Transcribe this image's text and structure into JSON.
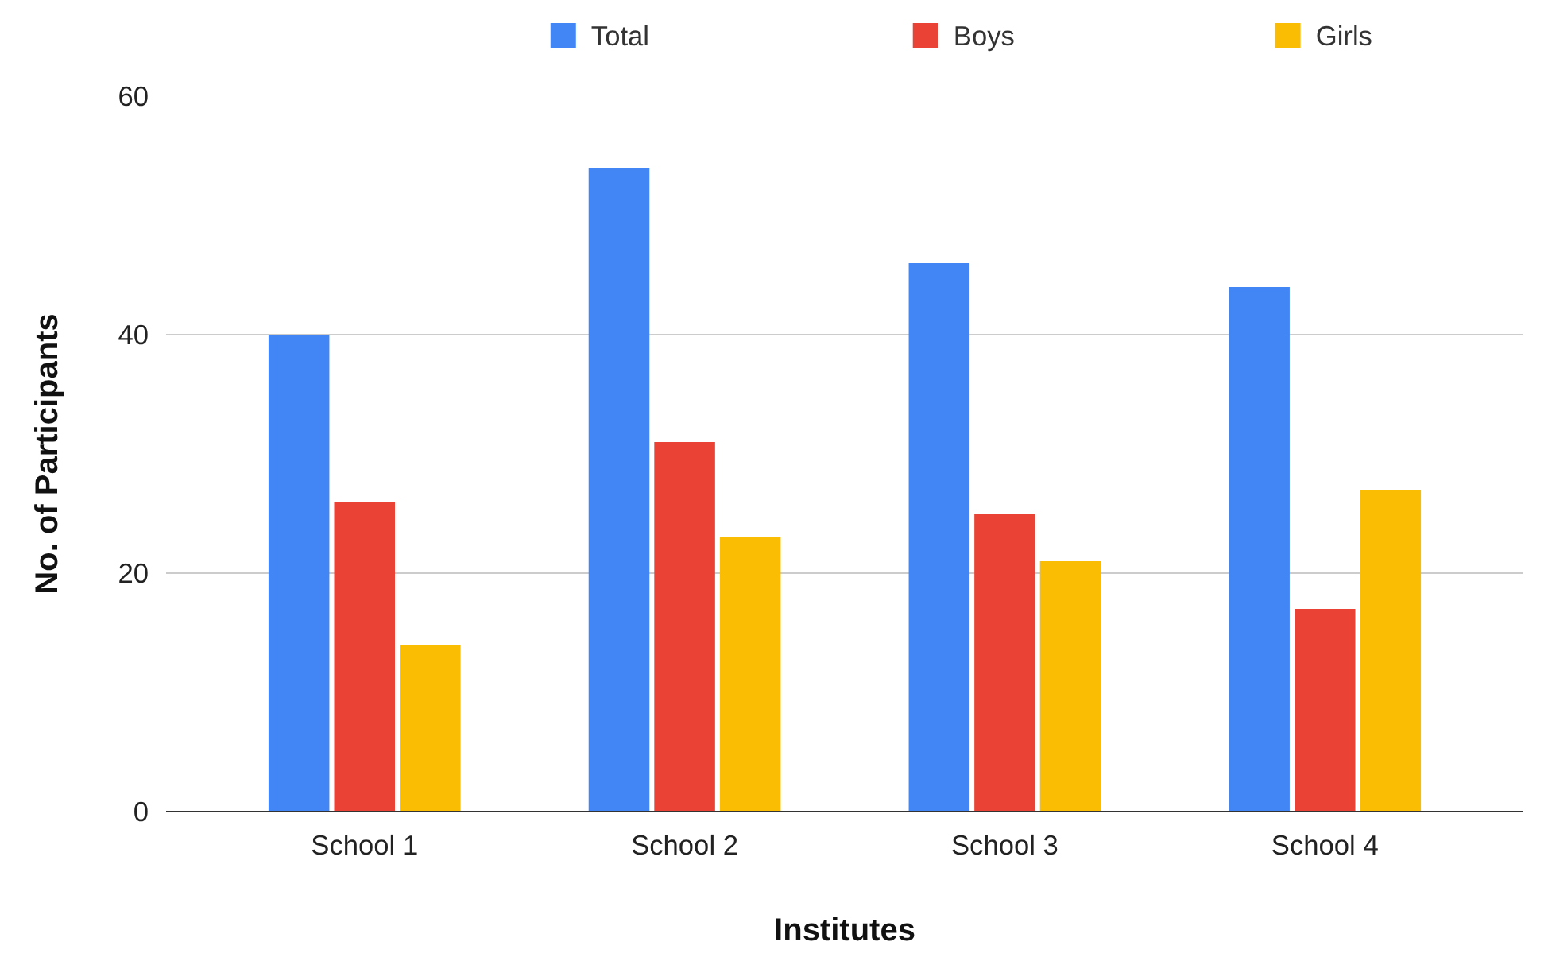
{
  "chart_data": {
    "type": "bar",
    "xlabel": "Institutes",
    "ylabel": "No. of Participants",
    "categories": [
      "School 1",
      "School 2",
      "School 3",
      "School 4"
    ],
    "series": [
      {
        "name": "Total",
        "color": "#4285f4",
        "values": [
          40,
          54,
          46,
          44
        ]
      },
      {
        "name": "Boys",
        "color": "#ea4335",
        "values": [
          26,
          31,
          25,
          17
        ]
      },
      {
        "name": "Girls",
        "color": "#fbbc04",
        "values": [
          14,
          23,
          21,
          27
        ]
      }
    ],
    "ylim": [
      0,
      60
    ],
    "yticks": [
      0,
      20,
      40,
      60
    ],
    "grid": "y",
    "legend": "top"
  }
}
